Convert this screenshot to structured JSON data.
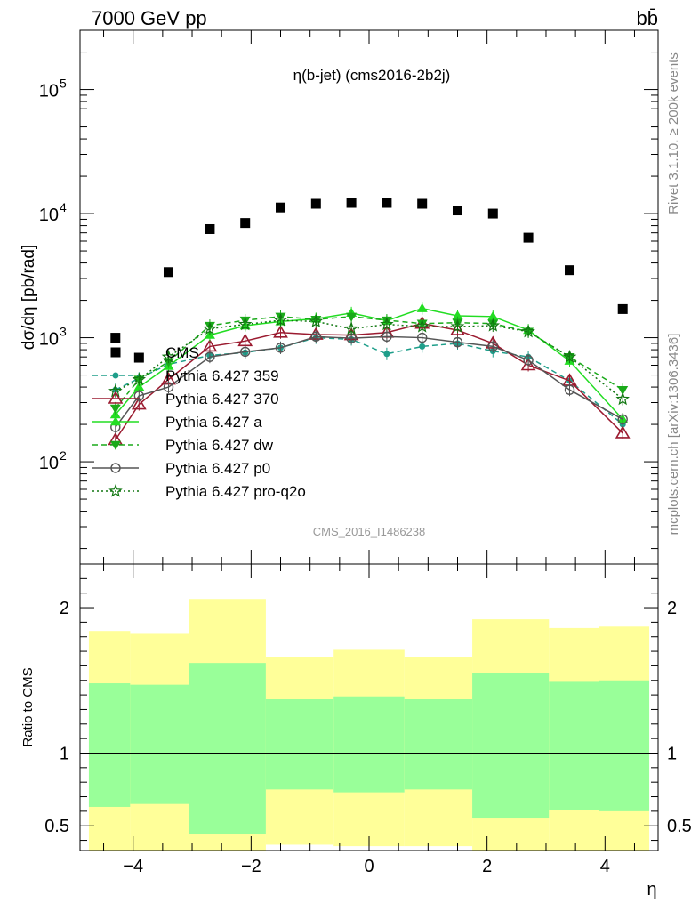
{
  "header": {
    "energy_label": "7000 GeV pp",
    "process_label": "bb̄",
    "plot_title": "η(b-jet) (cms2016-2b2j)",
    "side_label_top": "Rivet 3.1.10, ≥ 200k events",
    "side_label_bottom": "mcplots.cern.ch [arXiv:1306.3436]",
    "watermark": "CMS_2016_I1486238"
  },
  "chart_data": [
    {
      "type": "scatter",
      "ylabel": "dσ/dη [pb/rad]",
      "yscale": "log",
      "ylim": [
        15,
        300000
      ],
      "xlim": [
        -4.9,
        4.9
      ],
      "y_tick_labels": [
        {
          "value": 100,
          "mantissa": "10",
          "exp": "2"
        },
        {
          "value": 1000,
          "mantissa": "10",
          "exp": "3"
        },
        {
          "value": 10000,
          "mantissa": "10",
          "exp": "4"
        },
        {
          "value": 100000,
          "mantissa": "10",
          "exp": "5"
        }
      ],
      "legend_position": "center-left",
      "x": [
        -4.3,
        -3.9,
        -3.4,
        -2.7,
        -2.1,
        -1.5,
        -0.9,
        -0.3,
        0.3,
        0.9,
        1.5,
        2.1,
        2.7,
        3.4,
        4.3
      ],
      "series": [
        {
          "name": "CMS",
          "color": "#000000",
          "marker": "square",
          "line": "none",
          "values": [
            1000,
            690,
            3380,
            7500,
            8400,
            11200,
            12000,
            12200,
            12200,
            12000,
            10600,
            10000,
            6400,
            3500,
            1700
          ]
        },
        {
          "name": "Pythia 6.427 359",
          "color": "#1e9e8a",
          "marker": "dot",
          "line": "dashed",
          "values": [
            380,
            470,
            610,
            720,
            760,
            830,
            1000,
            970,
            740,
            850,
            900,
            780,
            700,
            450,
            200
          ]
        },
        {
          "name": "Pythia 6.427 370",
          "color": "#9b1b30",
          "marker": "open-triangle",
          "line": "solid",
          "values": [
            150,
            290,
            460,
            850,
            940,
            1100,
            1060,
            1050,
            1100,
            1300,
            1150,
            900,
            600,
            450,
            170
          ]
        },
        {
          "name": "Pythia 6.427 a",
          "color": "#22dd22",
          "marker": "triangle",
          "line": "solid",
          "values": [
            240,
            400,
            590,
            1050,
            1250,
            1350,
            1420,
            1580,
            1370,
            1720,
            1500,
            1480,
            1150,
            650,
            220
          ]
        },
        {
          "name": "Pythia 6.427 dw",
          "color": "#1aaa1a",
          "marker": "down-triangle",
          "line": "dashed",
          "values": [
            270,
            460,
            640,
            1250,
            1380,
            1480,
            1400,
            1480,
            1380,
            1300,
            1320,
            1300,
            1120,
            700,
            380
          ]
        },
        {
          "name": "Pythia 6.427 p0",
          "color": "#555555",
          "marker": "open-circle",
          "line": "solid",
          "values": [
            190,
            340,
            400,
            700,
            770,
            830,
            1020,
            990,
            1020,
            1000,
            920,
            850,
            660,
            380,
            220
          ]
        },
        {
          "name": "Pythia 6.427 pro-q2o",
          "color": "#117711",
          "marker": "star",
          "line": "dotted",
          "values": [
            370,
            460,
            700,
            1180,
            1280,
            1380,
            1350,
            1180,
            1280,
            1230,
            1230,
            1250,
            1120,
            700,
            320
          ]
        }
      ]
    },
    {
      "type": "area",
      "ylabel": "Ratio to CMS",
      "xlabel": "η",
      "ylim": [
        0.33,
        2.3
      ],
      "xlim": [
        -4.9,
        4.9
      ],
      "x_ticks": [
        -4,
        -2,
        0,
        2,
        4
      ],
      "y_ticks": [
        0.5,
        1,
        2
      ],
      "reference_line": 1,
      "bins": [
        {
          "xlo": -4.75,
          "xhi": -4.05,
          "inner": [
            0.63,
            1.48
          ],
          "outer": [
            0.3,
            1.84
          ]
        },
        {
          "xlo": -4.05,
          "xhi": -3.05,
          "inner": [
            0.65,
            1.47
          ],
          "outer": [
            0.3,
            1.82
          ]
        },
        {
          "xlo": -3.05,
          "xhi": -1.75,
          "inner": [
            0.44,
            1.62
          ],
          "outer": [
            0.3,
            2.06
          ]
        },
        {
          "xlo": -1.75,
          "xhi": -0.6,
          "inner": [
            0.75,
            1.37
          ],
          "outer": [
            0.37,
            1.66
          ]
        },
        {
          "xlo": -0.6,
          "xhi": 0.6,
          "inner": [
            0.73,
            1.39
          ],
          "outer": [
            0.36,
            1.71
          ]
        },
        {
          "xlo": 0.6,
          "xhi": 1.75,
          "inner": [
            0.75,
            1.37
          ],
          "outer": [
            0.36,
            1.66
          ]
        },
        {
          "xlo": 1.75,
          "xhi": 3.05,
          "inner": [
            0.55,
            1.55
          ],
          "outer": [
            0.3,
            1.92
          ]
        },
        {
          "xlo": 3.05,
          "xhi": 3.9,
          "inner": [
            0.61,
            1.49
          ],
          "outer": [
            0.3,
            1.86
          ]
        },
        {
          "xlo": 3.9,
          "xhi": 4.75,
          "inner": [
            0.6,
            1.5
          ],
          "outer": [
            0.3,
            1.87
          ]
        }
      ],
      "band_colors": {
        "inner": "#99ff99",
        "outer": "#ffff99"
      }
    }
  ]
}
